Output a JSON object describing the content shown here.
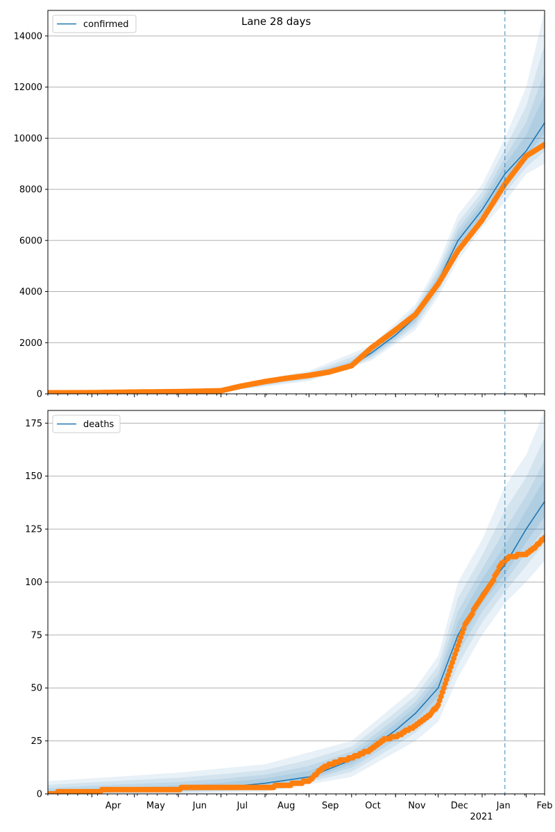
{
  "figure": {
    "title": "Lane 28 days",
    "year_label": "2021"
  },
  "colors": {
    "line": "#1f77b4",
    "points": "#ff7f0e",
    "band": "#1f77b4",
    "grid": "#b0b0b0",
    "vline": "#1f77b4"
  },
  "chart_data": [
    {
      "type": "line",
      "series_name": "confirmed",
      "x_range": [
        "2020-03-01",
        "2021-02-14"
      ],
      "ylim": [
        0,
        15000
      ],
      "yticks": [
        0,
        2000,
        4000,
        6000,
        8000,
        10000,
        12000,
        14000
      ],
      "month_ticks": [
        {
          "date": "2020-04-01",
          "label": "Apr"
        },
        {
          "date": "2020-05-01",
          "label": "May"
        },
        {
          "date": "2020-06-01",
          "label": "Jun"
        },
        {
          "date": "2020-07-01",
          "label": "Jul"
        },
        {
          "date": "2020-08-01",
          "label": "Aug"
        },
        {
          "date": "2020-09-01",
          "label": "Sep"
        },
        {
          "date": "2020-10-01",
          "label": "Oct"
        },
        {
          "date": "2020-11-01",
          "label": "Nov"
        },
        {
          "date": "2020-12-01",
          "label": "Dec"
        },
        {
          "date": "2021-01-01",
          "label": "Jan"
        },
        {
          "date": "2021-02-01",
          "label": "Feb"
        }
      ],
      "forecast_start": "2021-01-17",
      "legend": "top-left",
      "grid": "y",
      "model": [
        [
          "2020-03-01",
          40
        ],
        [
          "2020-04-01",
          50
        ],
        [
          "2020-05-01",
          75
        ],
        [
          "2020-06-01",
          95
        ],
        [
          "2020-07-01",
          130
        ],
        [
          "2020-07-15",
          250
        ],
        [
          "2020-08-01",
          420
        ],
        [
          "2020-08-15",
          570
        ],
        [
          "2020-09-01",
          700
        ],
        [
          "2020-09-15",
          840
        ],
        [
          "2020-10-01",
          1100
        ],
        [
          "2020-10-15",
          1600
        ],
        [
          "2020-11-01",
          2300
        ],
        [
          "2020-11-15",
          3000
        ],
        [
          "2020-12-01",
          4400
        ],
        [
          "2020-12-15",
          6000
        ],
        [
          "2021-01-01",
          7200
        ],
        [
          "2021-01-17",
          8600
        ],
        [
          "2021-02-01",
          9500
        ],
        [
          "2021-02-14",
          10600
        ]
      ],
      "band_outer": [
        [
          [
            "2020-03-01",
            0,
            110
          ],
          [
            "2020-07-01",
            60,
            230
          ],
          [
            "2020-09-01",
            500,
            900
          ],
          [
            "2020-10-15",
            1300,
            1900
          ],
          [
            "2020-11-15",
            2500,
            3500
          ],
          [
            "2020-12-01",
            3800,
            5100
          ],
          [
            "2020-12-15",
            5200,
            7000
          ],
          [
            "2021-01-01",
            6500,
            8200
          ],
          [
            "2021-01-17",
            7500,
            10000
          ],
          [
            "2021-02-01",
            8600,
            12000
          ],
          [
            "2021-02-14",
            9000,
            15000
          ]
        ]
      ],
      "observed": [
        [
          "2020-03-01",
          40
        ],
        [
          "2020-04-01",
          45
        ],
        [
          "2020-05-01",
          70
        ],
        [
          "2020-06-01",
          85
        ],
        [
          "2020-07-01",
          120
        ],
        [
          "2020-07-15",
          300
        ],
        [
          "2020-08-01",
          480
        ],
        [
          "2020-08-15",
          600
        ],
        [
          "2020-09-01",
          720
        ],
        [
          "2020-09-15",
          850
        ],
        [
          "2020-10-01",
          1100
        ],
        [
          "2020-10-15",
          1800
        ],
        [
          "2020-11-01",
          2500
        ],
        [
          "2020-11-15",
          3100
        ],
        [
          "2020-12-01",
          4300
        ],
        [
          "2020-12-15",
          5600
        ],
        [
          "2021-01-01",
          6800
        ],
        [
          "2021-01-17",
          8200
        ],
        [
          "2021-02-01",
          9300
        ],
        [
          "2021-02-14",
          9750
        ]
      ]
    },
    {
      "type": "line",
      "series_name": "deaths",
      "x_range": [
        "2020-03-01",
        "2021-02-14"
      ],
      "ylim": [
        0,
        181
      ],
      "yticks": [
        0,
        25,
        50,
        75,
        100,
        125,
        150,
        175
      ],
      "month_ticks": [
        {
          "date": "2020-04-01",
          "label": "Apr"
        },
        {
          "date": "2020-05-01",
          "label": "May"
        },
        {
          "date": "2020-06-01",
          "label": "Jun"
        },
        {
          "date": "2020-07-01",
          "label": "Jul"
        },
        {
          "date": "2020-08-01",
          "label": "Aug"
        },
        {
          "date": "2020-09-01",
          "label": "Sep"
        },
        {
          "date": "2020-10-01",
          "label": "Oct"
        },
        {
          "date": "2020-11-01",
          "label": "Nov"
        },
        {
          "date": "2020-12-01",
          "label": "Dec"
        },
        {
          "date": "2021-01-01",
          "label": "Jan"
        },
        {
          "date": "2021-02-01",
          "label": "Feb"
        }
      ],
      "forecast_start": "2021-01-17",
      "legend": "top-left",
      "grid": "y",
      "model": [
        [
          "2020-03-01",
          0
        ],
        [
          "2020-04-01",
          1
        ],
        [
          "2020-06-01",
          2
        ],
        [
          "2020-07-01",
          3
        ],
        [
          "2020-08-01",
          5
        ],
        [
          "2020-09-01",
          8
        ],
        [
          "2020-10-01",
          16
        ],
        [
          "2020-10-15",
          22
        ],
        [
          "2020-11-01",
          30
        ],
        [
          "2020-11-15",
          38
        ],
        [
          "2020-12-01",
          50
        ],
        [
          "2020-12-15",
          75
        ],
        [
          "2021-01-01",
          95
        ],
        [
          "2021-01-17",
          108
        ],
        [
          "2021-02-01",
          125
        ],
        [
          "2021-02-14",
          138
        ]
      ],
      "band_outer": [
        [
          [
            "2020-03-01",
            0,
            6
          ],
          [
            "2020-06-01",
            0,
            10
          ],
          [
            "2020-08-01",
            1,
            14
          ],
          [
            "2020-10-01",
            8,
            25
          ],
          [
            "2020-11-15",
            25,
            50
          ],
          [
            "2020-12-01",
            34,
            65
          ],
          [
            "2020-12-15",
            55,
            100
          ],
          [
            "2021-01-01",
            75,
            120
          ],
          [
            "2021-01-17",
            90,
            145
          ],
          [
            "2021-02-01",
            100,
            160
          ],
          [
            "2021-02-14",
            110,
            181
          ]
        ]
      ],
      "observed": [
        [
          "2020-03-01",
          0
        ],
        [
          "2020-03-15",
          1
        ],
        [
          "2020-05-01",
          2
        ],
        [
          "2020-06-01",
          2
        ],
        [
          "2020-06-05",
          3
        ],
        [
          "2020-08-01",
          3
        ],
        [
          "2020-08-15",
          4
        ],
        [
          "2020-09-01",
          6
        ],
        [
          "2020-09-10",
          12
        ],
        [
          "2020-09-20",
          15
        ],
        [
          "2020-10-01",
          17
        ],
        [
          "2020-10-15",
          21
        ],
        [
          "2020-10-25",
          26
        ],
        [
          "2020-11-01",
          27
        ],
        [
          "2020-11-15",
          32
        ],
        [
          "2020-11-25",
          37
        ],
        [
          "2020-12-01",
          42
        ],
        [
          "2020-12-10",
          60
        ],
        [
          "2020-12-20",
          80
        ],
        [
          "2021-01-01",
          93
        ],
        [
          "2021-01-08",
          100
        ],
        [
          "2021-01-14",
          108
        ],
        [
          "2021-01-20",
          112
        ],
        [
          "2021-02-01",
          113
        ],
        [
          "2021-02-08",
          117
        ],
        [
          "2021-02-14",
          121
        ]
      ]
    }
  ]
}
